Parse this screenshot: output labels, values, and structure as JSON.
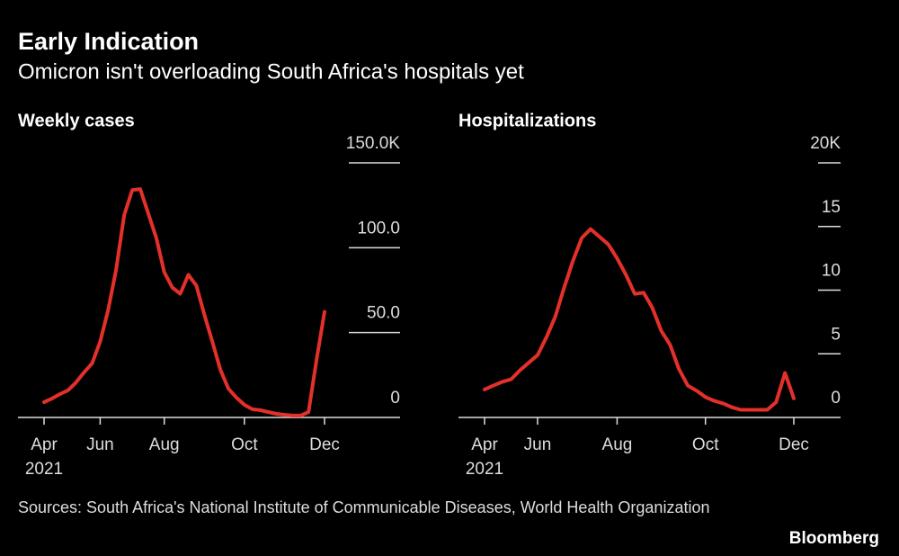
{
  "title": "Early Indication",
  "subtitle": "Omicron isn't overloading South Africa's hospitals yet",
  "source": "Sources: South Africa's National Institute of Communicable Diseases, World Health Organization",
  "brand": "Bloomberg",
  "chart_data": [
    {
      "type": "line",
      "title": "Weekly cases",
      "year_label": "2021",
      "color": "#e3302a",
      "categories": [
        "Apr",
        null,
        null,
        null,
        null,
        null,
        null,
        "Jun",
        null,
        null,
        null,
        null,
        null,
        null,
        null,
        "Aug",
        null,
        null,
        null,
        null,
        null,
        null,
        null,
        null,
        null,
        "Oct",
        null,
        null,
        null,
        null,
        null,
        null,
        null,
        null,
        null,
        "Dec"
      ],
      "values": [
        9000,
        11200,
        13800,
        16000,
        20700,
        26600,
        31900,
        44700,
        63300,
        87200,
        119100,
        134000,
        134600,
        120200,
        105900,
        85600,
        76600,
        72900,
        84000,
        77700,
        60600,
        44700,
        28200,
        17000,
        11700,
        7400,
        4800,
        4300,
        3200,
        2100,
        1600,
        1100,
        1100,
        3200,
        34000,
        62200
      ],
      "ylim": [
        0,
        150000
      ],
      "yticks": [
        0,
        {
          "value": 50000,
          "label": "50.0"
        },
        {
          "value": 100000,
          "label": "100.0"
        },
        {
          "value": 150000,
          "label": "150.0K"
        }
      ]
    },
    {
      "type": "line",
      "title": "Hospitalizations",
      "year_label": "2021",
      "color": "#e3302a",
      "categories": [
        "Apr",
        null,
        null,
        null,
        null,
        null,
        "Jun",
        null,
        null,
        null,
        null,
        null,
        null,
        null,
        null,
        "Aug",
        null,
        null,
        null,
        null,
        null,
        null,
        null,
        null,
        null,
        "Oct",
        null,
        null,
        null,
        null,
        null,
        null,
        null,
        null,
        null,
        "Dec"
      ],
      "values": [
        2200,
        2500,
        2800,
        3000,
        3700,
        4300,
        4900,
        6300,
        7900,
        10200,
        12300,
        14100,
        14800,
        14200,
        13600,
        12500,
        11200,
        9700,
        9800,
        8600,
        6800,
        5700,
        3800,
        2500,
        2100,
        1600,
        1300,
        1100,
        800,
        600,
        600,
        600,
        600,
        1200,
        3500,
        1500
      ],
      "ylim": [
        0,
        20000
      ],
      "yticks": [
        0,
        {
          "value": 5000,
          "label": "5"
        },
        {
          "value": 10000,
          "label": "10"
        },
        {
          "value": 15000,
          "label": "15"
        },
        {
          "value": 20000,
          "label": "20K"
        }
      ]
    }
  ]
}
